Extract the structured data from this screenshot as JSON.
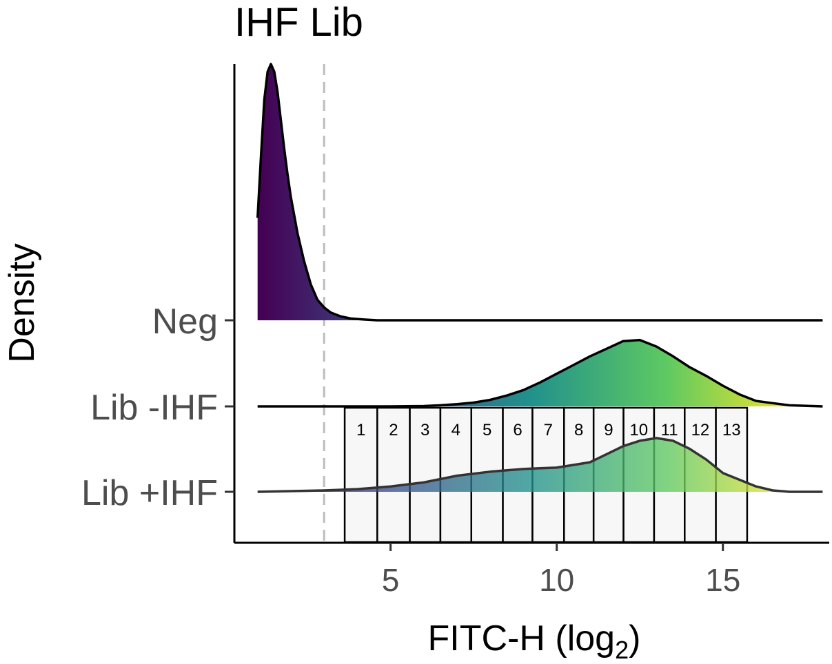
{
  "chart_data": {
    "type": "ridgeline",
    "title": "IHF Lib",
    "xlabel": "FITC-H (log",
    "xlabel_subscript": "2",
    "xlabel_suffix": ")",
    "ylabel": "Density",
    "xlim": [
      0.3,
      18.2
    ],
    "xticks": [
      5,
      10,
      15
    ],
    "threshold": 3.0,
    "categories": [
      "Neg",
      "Lib -IHF",
      "Lib +IHF"
    ],
    "colors": {
      "gradient": [
        "#440154",
        "#3b528b",
        "#21918c",
        "#5ec962",
        "#fde725"
      ],
      "threshold_line": "#bdbdbd",
      "bin_fill": "#f7f7f7"
    },
    "series": [
      {
        "name": "Neg",
        "x": [
          1.0,
          1.1,
          1.2,
          1.3,
          1.4,
          1.5,
          1.6,
          1.7,
          1.8,
          1.9,
          2.0,
          2.2,
          2.4,
          2.6,
          2.8,
          3.0,
          3.2,
          3.5,
          3.8,
          4.2,
          4.6,
          6.0,
          10.0,
          15.0,
          18.0
        ],
        "density": [
          0.4,
          0.64,
          0.86,
          0.97,
          1.0,
          0.97,
          0.89,
          0.78,
          0.67,
          0.57,
          0.48,
          0.34,
          0.23,
          0.14,
          0.08,
          0.05,
          0.03,
          0.015,
          0.007,
          0.003,
          0.0,
          0.0,
          0.0,
          0.0,
          0.0
        ]
      },
      {
        "name": "Lib -IHF",
        "x": [
          1.0,
          3.0,
          5.0,
          6.0,
          6.5,
          7.0,
          7.5,
          8.0,
          8.5,
          9.0,
          9.5,
          10.0,
          10.5,
          11.0,
          11.5,
          12.0,
          12.5,
          13.0,
          13.5,
          14.0,
          14.5,
          15.0,
          15.5,
          16.0,
          16.5,
          17.0,
          18.0
        ],
        "density": [
          0.0,
          0.0,
          0.0,
          0.003,
          0.01,
          0.02,
          0.035,
          0.06,
          0.1,
          0.15,
          0.22,
          0.3,
          0.38,
          0.46,
          0.53,
          0.6,
          0.61,
          0.55,
          0.46,
          0.36,
          0.28,
          0.19,
          0.11,
          0.05,
          0.03,
          0.01,
          0.0
        ]
      },
      {
        "name": "Lib +IHF",
        "x": [
          1.0,
          3.0,
          4.0,
          5.0,
          6.0,
          7.0,
          8.0,
          8.5,
          9.0,
          9.5,
          10.0,
          10.5,
          11.0,
          11.5,
          12.0,
          12.5,
          13.0,
          13.5,
          14.0,
          14.5,
          15.0,
          15.5,
          16.0,
          16.5,
          17.0,
          18.0
        ],
        "density": [
          0.0,
          0.005,
          0.01,
          0.02,
          0.035,
          0.06,
          0.075,
          0.08,
          0.085,
          0.088,
          0.09,
          0.1,
          0.11,
          0.14,
          0.17,
          0.19,
          0.2,
          0.19,
          0.16,
          0.12,
          0.07,
          0.045,
          0.02,
          0.005,
          0.0,
          0.0
        ]
      }
    ],
    "bins": [
      {
        "label": "1",
        "from": 3.62,
        "to": 4.6
      },
      {
        "label": "2",
        "from": 4.6,
        "to": 5.58
      },
      {
        "label": "3",
        "from": 5.58,
        "to": 6.5
      },
      {
        "label": "4",
        "from": 6.5,
        "to": 7.43
      },
      {
        "label": "5",
        "from": 7.43,
        "to": 8.38
      },
      {
        "label": "6",
        "from": 8.38,
        "to": 9.27
      },
      {
        "label": "7",
        "from": 9.27,
        "to": 10.22
      },
      {
        "label": "8",
        "from": 10.22,
        "to": 11.11
      },
      {
        "label": "9",
        "from": 11.11,
        "to": 12.01
      },
      {
        "label": "10",
        "from": 12.01,
        "to": 12.93
      },
      {
        "label": "11",
        "from": 12.93,
        "to": 13.85
      },
      {
        "label": "12",
        "from": 13.85,
        "to": 14.79
      },
      {
        "label": "13",
        "from": 14.79,
        "to": 15.73
      }
    ]
  }
}
